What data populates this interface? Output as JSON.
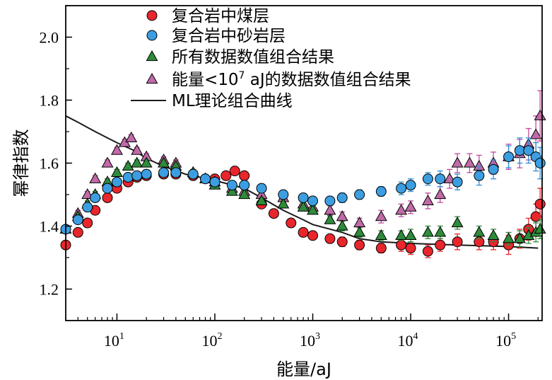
{
  "chart_data": {
    "type": "scatter",
    "xlabel": "能量/aJ",
    "ylabel": "幂律指数",
    "xscale": "log",
    "xlim": [
      3,
      220000
    ],
    "ylim": [
      1.1,
      2.1
    ],
    "x_ticks": [
      {
        "value": 10,
        "base": "10",
        "exp": "1"
      },
      {
        "value": 100,
        "base": "10",
        "exp": "2"
      },
      {
        "value": 1000,
        "base": "10",
        "exp": "3"
      },
      {
        "value": 10000,
        "base": "10",
        "exp": "4"
      },
      {
        "value": 100000,
        "base": "10",
        "exp": "5"
      }
    ],
    "y_ticks": [
      "1.2",
      "1.4",
      "1.6",
      "1.8",
      "2.0"
    ],
    "legend_position": "top",
    "legend": [
      {
        "key": "coal",
        "label": "复合岩中煤层"
      },
      {
        "key": "sand",
        "label": "复合岩中砂岩层"
      },
      {
        "key": "all",
        "label": "所有数据数值组合结果"
      },
      {
        "key": "low",
        "label_main": "能量<10",
        "label_sup": "7",
        "label_rest": " aJ的数据数值组合结果"
      },
      {
        "key": "ml",
        "label": "ML理论组合曲线"
      }
    ],
    "series": [
      {
        "key": "coal",
        "marker": "circle",
        "color": "#e8262b",
        "error_color": "#e8262b",
        "points": [
          [
            3,
            1.34
          ],
          [
            4,
            1.38
          ],
          [
            5,
            1.41
          ],
          [
            6,
            1.45
          ],
          [
            8,
            1.49
          ],
          [
            10,
            1.52
          ],
          [
            13,
            1.54
          ],
          [
            16,
            1.555
          ],
          [
            20,
            1.56
          ],
          [
            30,
            1.565
          ],
          [
            40,
            1.565
          ],
          [
            60,
            1.56
          ],
          [
            80,
            1.55
          ],
          [
            100,
            1.55
          ],
          [
            130,
            1.56
          ],
          [
            160,
            1.575
          ],
          [
            200,
            1.56
          ],
          [
            300,
            1.47
          ],
          [
            400,
            1.44
          ],
          [
            600,
            1.41
          ],
          [
            800,
            1.38
          ],
          [
            1000,
            1.37
          ],
          [
            1500,
            1.36
          ],
          [
            2000,
            1.35
          ],
          [
            3000,
            1.34
          ],
          [
            5000,
            1.33
          ],
          [
            8000,
            1.34
          ],
          [
            10000,
            1.33
          ],
          [
            15000,
            1.32
          ],
          [
            20000,
            1.34
          ],
          [
            30000,
            1.35
          ],
          [
            50000,
            1.35
          ],
          [
            70000,
            1.35
          ],
          [
            100000,
            1.34
          ],
          [
            130000,
            1.36
          ],
          [
            160000,
            1.39
          ],
          [
            190000,
            1.43
          ],
          [
            210000,
            1.47
          ]
        ],
        "errors": [
          0.01,
          0.01,
          0.01,
          0.01,
          0.01,
          0.01,
          0.01,
          0.01,
          0.01,
          0.01,
          0.01,
          0.01,
          0.01,
          0.01,
          0.01,
          0.01,
          0.01,
          0.01,
          0.01,
          0.01,
          0.012,
          0.012,
          0.012,
          0.015,
          0.015,
          0.015,
          0.02,
          0.02,
          0.02,
          0.02,
          0.025,
          0.025,
          0.025,
          0.03,
          0.03,
          0.035,
          0.04,
          0.05
        ]
      },
      {
        "key": "sand",
        "marker": "circle",
        "color": "#3c9ee0",
        "error_color": "#2e8fd8",
        "points": [
          [
            3,
            1.39
          ],
          [
            4,
            1.42
          ],
          [
            5,
            1.46
          ],
          [
            6,
            1.49
          ],
          [
            8,
            1.52
          ],
          [
            10,
            1.54
          ],
          [
            13,
            1.555
          ],
          [
            16,
            1.56
          ],
          [
            20,
            1.565
          ],
          [
            30,
            1.57
          ],
          [
            40,
            1.57
          ],
          [
            60,
            1.565
          ],
          [
            80,
            1.55
          ],
          [
            100,
            1.54
          ],
          [
            150,
            1.53
          ],
          [
            200,
            1.53
          ],
          [
            300,
            1.52
          ],
          [
            500,
            1.5
          ],
          [
            800,
            1.49
          ],
          [
            1000,
            1.48
          ],
          [
            1500,
            1.48
          ],
          [
            2000,
            1.49
          ],
          [
            3000,
            1.5
          ],
          [
            5000,
            1.51
          ],
          [
            8000,
            1.52
          ],
          [
            10000,
            1.53
          ],
          [
            15000,
            1.55
          ],
          [
            20000,
            1.55
          ],
          [
            30000,
            1.54
          ],
          [
            50000,
            1.56
          ],
          [
            70000,
            1.58
          ],
          [
            100000,
            1.62
          ],
          [
            130000,
            1.64
          ],
          [
            160000,
            1.64
          ],
          [
            190000,
            1.62
          ],
          [
            210000,
            1.6
          ]
        ],
        "errors": [
          0.01,
          0.01,
          0.01,
          0.01,
          0.01,
          0.01,
          0.01,
          0.01,
          0.01,
          0.01,
          0.01,
          0.01,
          0.01,
          0.01,
          0.01,
          0.01,
          0.01,
          0.012,
          0.012,
          0.012,
          0.012,
          0.015,
          0.015,
          0.015,
          0.02,
          0.02,
          0.02,
          0.025,
          0.025,
          0.03,
          0.03,
          0.035,
          0.04,
          0.04,
          0.045,
          0.05
        ]
      },
      {
        "key": "all",
        "marker": "triangle",
        "color": "#2e8b3a",
        "error_color": "#2e8b3a",
        "points": [
          [
            3,
            1.39
          ],
          [
            4,
            1.43
          ],
          [
            5,
            1.47
          ],
          [
            6,
            1.5
          ],
          [
            8,
            1.54
          ],
          [
            10,
            1.57
          ],
          [
            13,
            1.59
          ],
          [
            16,
            1.6
          ],
          [
            20,
            1.6
          ],
          [
            30,
            1.6
          ],
          [
            40,
            1.59
          ],
          [
            60,
            1.57
          ],
          [
            80,
            1.55
          ],
          [
            100,
            1.53
          ],
          [
            150,
            1.51
          ],
          [
            200,
            1.5
          ],
          [
            300,
            1.48
          ],
          [
            500,
            1.47
          ],
          [
            800,
            1.46
          ],
          [
            1000,
            1.45
          ],
          [
            1500,
            1.42
          ],
          [
            2000,
            1.4
          ],
          [
            3000,
            1.38
          ],
          [
            5000,
            1.37
          ],
          [
            8000,
            1.37
          ],
          [
            10000,
            1.37
          ],
          [
            15000,
            1.38
          ],
          [
            20000,
            1.38
          ],
          [
            30000,
            1.41
          ],
          [
            50000,
            1.38
          ],
          [
            70000,
            1.37
          ],
          [
            100000,
            1.36
          ],
          [
            130000,
            1.36
          ],
          [
            160000,
            1.37
          ],
          [
            190000,
            1.38
          ],
          [
            210000,
            1.39
          ]
        ],
        "errors": [
          0.01,
          0.01,
          0.01,
          0.01,
          0.01,
          0.01,
          0.01,
          0.01,
          0.01,
          0.01,
          0.01,
          0.01,
          0.01,
          0.01,
          0.01,
          0.01,
          0.01,
          0.012,
          0.012,
          0.012,
          0.012,
          0.015,
          0.015,
          0.015,
          0.015,
          0.02,
          0.02,
          0.02,
          0.02,
          0.02,
          0.02,
          0.02,
          0.025,
          0.025,
          0.03,
          0.03
        ]
      },
      {
        "key": "low",
        "marker": "triangle",
        "color": "#c06aa8",
        "error_color": "#c04aa0",
        "points": [
          [
            3,
            1.39
          ],
          [
            4,
            1.44
          ],
          [
            5,
            1.5
          ],
          [
            6,
            1.55
          ],
          [
            8,
            1.6
          ],
          [
            10,
            1.64
          ],
          [
            12,
            1.665
          ],
          [
            14,
            1.68
          ],
          [
            16,
            1.64
          ],
          [
            20,
            1.62
          ],
          [
            30,
            1.61
          ],
          [
            40,
            1.6
          ],
          [
            60,
            1.57
          ],
          [
            80,
            1.55
          ],
          [
            100,
            1.54
          ],
          [
            150,
            1.52
          ],
          [
            200,
            1.51
          ],
          [
            300,
            1.5
          ],
          [
            500,
            1.49
          ],
          [
            800,
            1.47
          ],
          [
            1000,
            1.46
          ],
          [
            1500,
            1.45
          ],
          [
            2000,
            1.43
          ],
          [
            3000,
            1.41
          ],
          [
            5000,
            1.43
          ],
          [
            8000,
            1.45
          ],
          [
            10000,
            1.46
          ],
          [
            15000,
            1.48
          ],
          [
            20000,
            1.5
          ],
          [
            25000,
            1.55
          ],
          [
            30000,
            1.6
          ],
          [
            40000,
            1.6
          ],
          [
            50000,
            1.59
          ],
          [
            70000,
            1.6
          ],
          [
            100000,
            1.62
          ],
          [
            130000,
            1.63
          ],
          [
            160000,
            1.66
          ],
          [
            190000,
            1.69
          ],
          [
            210000,
            1.75
          ]
        ],
        "errors": [
          0.01,
          0.01,
          0.01,
          0.01,
          0.01,
          0.01,
          0.01,
          0.01,
          0.01,
          0.01,
          0.01,
          0.01,
          0.01,
          0.01,
          0.01,
          0.01,
          0.01,
          0.012,
          0.012,
          0.012,
          0.012,
          0.015,
          0.015,
          0.015,
          0.02,
          0.02,
          0.02,
          0.025,
          0.025,
          0.03,
          0.03,
          0.03,
          0.035,
          0.035,
          0.04,
          0.045,
          0.05,
          0.06,
          0.08
        ]
      }
    ],
    "curve": {
      "key": "ml",
      "color": "#1a1a1a",
      "points": [
        [
          3,
          1.75
        ],
        [
          4,
          1.73
        ],
        [
          6,
          1.7
        ],
        [
          8,
          1.68
        ],
        [
          10,
          1.665
        ],
        [
          15,
          1.64
        ],
        [
          20,
          1.615
        ],
        [
          30,
          1.59
        ],
        [
          50,
          1.565
        ],
        [
          100,
          1.545
        ],
        [
          200,
          1.52
        ],
        [
          300,
          1.49
        ],
        [
          500,
          1.45
        ],
        [
          800,
          1.42
        ],
        [
          1000,
          1.405
        ],
        [
          2000,
          1.38
        ],
        [
          3000,
          1.36
        ],
        [
          5000,
          1.35
        ],
        [
          10000,
          1.345
        ],
        [
          30000,
          1.34
        ],
        [
          100000,
          1.335
        ],
        [
          200000,
          1.33
        ]
      ]
    }
  }
}
